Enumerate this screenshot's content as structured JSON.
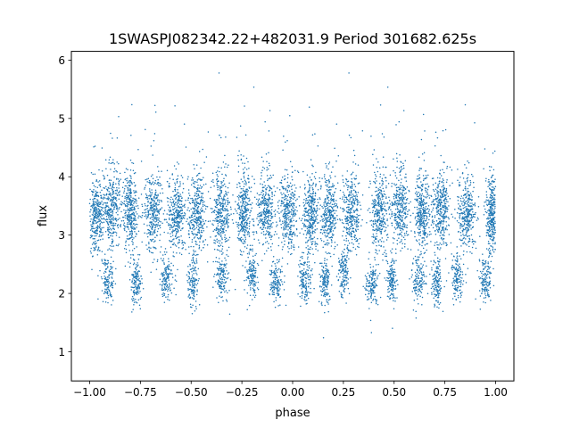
{
  "chart_data": {
    "type": "scatter",
    "title": "1SWASPJ082342.22+482031.9 Period 301682.625s",
    "xlabel": "phase",
    "ylabel": "flux",
    "xlim": [
      -1.09,
      1.09
    ],
    "ylim": [
      0.5,
      6.15
    ],
    "x_ticks": [
      -1.0,
      -0.75,
      -0.5,
      -0.25,
      0.0,
      0.25,
      0.5,
      0.75,
      1.0
    ],
    "x_tick_labels": [
      "−1.00",
      "−0.75",
      "−0.50",
      "−0.25",
      "0.00",
      "0.25",
      "0.50",
      "0.75",
      "1.00"
    ],
    "y_ticks": [
      1,
      2,
      3,
      4,
      5,
      6
    ],
    "y_tick_labels": [
      "1",
      "2",
      "3",
      "4",
      "5",
      "6"
    ],
    "grid": false,
    "legend": "none",
    "series": [
      {
        "color": "#1f77b4",
        "description_points": "dense point cloud of phase-folded photometry",
        "clusters": [
          {
            "x_center": -0.97,
            "x_width": 0.04,
            "y_center": 3.35,
            "y_spread": 0.33
          },
          {
            "x_center": -0.89,
            "x_width": 0.05,
            "y_center": 3.45,
            "y_spread": 0.33
          },
          {
            "x_center": -0.8,
            "x_width": 0.04,
            "y_center": 3.4,
            "y_spread": 0.33
          },
          {
            "x_center": -0.69,
            "x_width": 0.05,
            "y_center": 3.4,
            "y_spread": 0.33
          },
          {
            "x_center": -0.57,
            "x_width": 0.05,
            "y_center": 3.4,
            "y_spread": 0.33
          },
          {
            "x_center": -0.47,
            "x_width": 0.05,
            "y_center": 3.38,
            "y_spread": 0.33
          },
          {
            "x_center": -0.35,
            "x_width": 0.05,
            "y_center": 3.4,
            "y_spread": 0.33
          },
          {
            "x_center": -0.24,
            "x_width": 0.04,
            "y_center": 3.38,
            "y_spread": 0.33
          },
          {
            "x_center": -0.13,
            "x_width": 0.05,
            "y_center": 3.4,
            "y_spread": 0.33
          },
          {
            "x_center": -0.02,
            "x_width": 0.05,
            "y_center": 3.38,
            "y_spread": 0.33
          },
          {
            "x_center": 0.09,
            "x_width": 0.04,
            "y_center": 3.38,
            "y_spread": 0.33
          },
          {
            "x_center": 0.18,
            "x_width": 0.05,
            "y_center": 3.4,
            "y_spread": 0.33
          },
          {
            "x_center": 0.29,
            "x_width": 0.05,
            "y_center": 3.4,
            "y_spread": 0.33
          },
          {
            "x_center": 0.43,
            "x_width": 0.05,
            "y_center": 3.4,
            "y_spread": 0.33
          },
          {
            "x_center": 0.53,
            "x_width": 0.05,
            "y_center": 3.4,
            "y_spread": 0.33
          },
          {
            "x_center": 0.64,
            "x_width": 0.04,
            "y_center": 3.4,
            "y_spread": 0.33
          },
          {
            "x_center": 0.73,
            "x_width": 0.05,
            "y_center": 3.45,
            "y_spread": 0.33
          },
          {
            "x_center": 0.86,
            "x_width": 0.05,
            "y_center": 3.42,
            "y_spread": 0.33
          },
          {
            "x_center": 0.98,
            "x_width": 0.03,
            "y_center": 3.35,
            "y_spread": 0.33
          },
          {
            "x_center": -0.91,
            "x_width": 0.035,
            "y_center": 2.25,
            "y_spread": 0.2
          },
          {
            "x_center": -0.77,
            "x_width": 0.03,
            "y_center": 2.2,
            "y_spread": 0.2
          },
          {
            "x_center": -0.62,
            "x_width": 0.035,
            "y_center": 2.25,
            "y_spread": 0.2
          },
          {
            "x_center": -0.49,
            "x_width": 0.03,
            "y_center": 2.2,
            "y_spread": 0.2
          },
          {
            "x_center": -0.35,
            "x_width": 0.035,
            "y_center": 2.25,
            "y_spread": 0.2
          },
          {
            "x_center": -0.2,
            "x_width": 0.03,
            "y_center": 2.3,
            "y_spread": 0.2
          },
          {
            "x_center": -0.08,
            "x_width": 0.035,
            "y_center": 2.2,
            "y_spread": 0.2
          },
          {
            "x_center": 0.06,
            "x_width": 0.035,
            "y_center": 2.25,
            "y_spread": 0.2
          },
          {
            "x_center": 0.16,
            "x_width": 0.03,
            "y_center": 2.2,
            "y_spread": 0.2
          },
          {
            "x_center": 0.25,
            "x_width": 0.03,
            "y_center": 2.35,
            "y_spread": 0.2
          },
          {
            "x_center": 0.39,
            "x_width": 0.035,
            "y_center": 2.2,
            "y_spread": 0.2
          },
          {
            "x_center": 0.49,
            "x_width": 0.03,
            "y_center": 2.25,
            "y_spread": 0.2
          },
          {
            "x_center": 0.62,
            "x_width": 0.035,
            "y_center": 2.25,
            "y_spread": 0.2
          },
          {
            "x_center": 0.71,
            "x_width": 0.03,
            "y_center": 2.2,
            "y_spread": 0.2
          },
          {
            "x_center": 0.81,
            "x_width": 0.03,
            "y_center": 2.3,
            "y_spread": 0.2
          },
          {
            "x_center": 0.95,
            "x_width": 0.035,
            "y_center": 2.25,
            "y_spread": 0.2
          }
        ]
      }
    ]
  }
}
